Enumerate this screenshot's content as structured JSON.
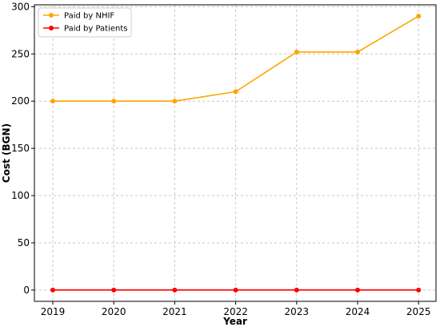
{
  "chart_data": {
    "type": "line",
    "title": "",
    "xlabel": "Year",
    "ylabel": "Cost (BGN)",
    "categories": [
      "2019",
      "2020",
      "2021",
      "2022",
      "2023",
      "2024",
      "2025"
    ],
    "x_tick_labels": [
      "2019",
      "2020",
      "2021",
      "2022",
      "2023",
      "2024",
      "2025"
    ],
    "y_tick_values": [
      0,
      50,
      100,
      150,
      200,
      250,
      300
    ],
    "y_tick_labels": [
      "0",
      "50",
      "100",
      "150",
      "200",
      "250",
      "300"
    ],
    "ylim": [
      -12,
      302
    ],
    "grid": true,
    "legend_position": "top-left",
    "series": [
      {
        "name": "Paid by NHIF",
        "color": "#ffa500",
        "values": [
          200,
          200,
          200,
          210,
          252,
          252,
          290
        ]
      },
      {
        "name": "Paid by Patients",
        "color": "#ff0000",
        "values": [
          0,
          0,
          0,
          0,
          0,
          0,
          0
        ]
      }
    ]
  }
}
